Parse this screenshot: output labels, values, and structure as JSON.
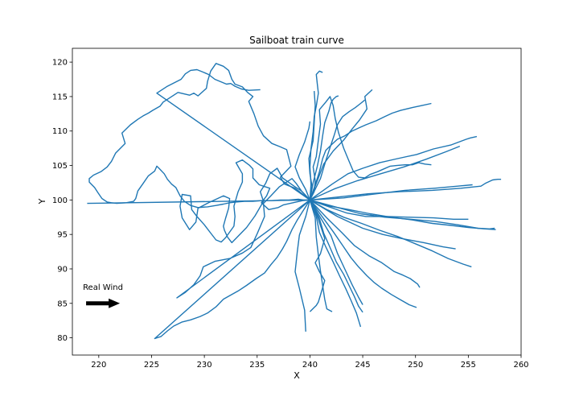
{
  "chart_data": {
    "type": "line",
    "title": "Sailboat train curve",
    "xlabel": "X",
    "ylabel": "Y",
    "xlim": [
      217.5,
      260
    ],
    "ylim": [
      77.5,
      122
    ],
    "x_ticks": [
      220,
      225,
      230,
      235,
      240,
      245,
      250,
      255,
      260
    ],
    "y_ticks": [
      80,
      85,
      90,
      95,
      100,
      105,
      110,
      115,
      120
    ],
    "grid": false,
    "series_color": "#1f77b4",
    "annotation": {
      "text": "Real Wind",
      "arrow_from": [
        218.8,
        85.0
      ],
      "arrow_to": [
        222.0,
        85.0
      ],
      "arrow_color": "#000000"
    },
    "series": [
      {
        "x": [
          240,
          239.2,
          238.5,
          237.4,
          236.9,
          236.2,
          235.8,
          235.3,
          235.6,
          234.8,
          234.0,
          232.6,
          232.2,
          231.9,
          231.8,
          232.0,
          232.3,
          232.4,
          231.8,
          230.4,
          229.4,
          229.2,
          228.6,
          227.9,
          227.7,
          227.9,
          228.7,
          228.8,
          229.3,
          230.0,
          230.6,
          231.1,
          231.6,
          232.0,
          232.8,
          232.9,
          232.8,
          233.2,
          233.6,
          233.6,
          233.3,
          233.0,
          233.6,
          234.3,
          234.6,
          234.6,
          235.2,
          236.2,
          235.9,
          235.4,
          236.1,
          237.0,
          237.5,
          238.4,
          239.3,
          240.0
        ],
        "y": [
          100,
          101.3,
          102.0,
          103.2,
          104.6,
          103.8,
          102.4,
          101.2,
          99.8,
          97.7,
          96.0,
          93.8,
          94.6,
          95.6,
          96.2,
          97.3,
          98.8,
          100.2,
          100.6,
          99.6,
          98.8,
          96.8,
          95.7,
          97.4,
          99.1,
          100.8,
          100.6,
          98.6,
          97.6,
          96.4,
          95.2,
          94.2,
          93.9,
          94.5,
          96.2,
          97.6,
          99.1,
          101.2,
          102.6,
          103.8,
          104.6,
          105.4,
          105.8,
          105.0,
          104.5,
          103.2,
          102.2,
          101.7,
          100.6,
          99.6,
          98.6,
          98.9,
          99.3,
          99.6,
          99.9,
          100
        ]
      },
      {
        "x": [
          240,
          238.6,
          237.6,
          237.2,
          238.2,
          237.8,
          237.2,
          236.4,
          235.6,
          235.1,
          234.7,
          234.2,
          234.6,
          234.1,
          233.6,
          232.9,
          232.6,
          232.3,
          231.8,
          231.1,
          230.6,
          230.3,
          230.2,
          229.4,
          229.0,
          228.6,
          227.5,
          226.1,
          225.8,
          225.1,
          224.7,
          224.2,
          223.7,
          223.0,
          222.2,
          222.5,
          221.6,
          221.2,
          220.8,
          220.2,
          219.5,
          219.1,
          219.1,
          219.6,
          219.9,
          220.3,
          220.8,
          221.2,
          221.7,
          222.6,
          223.3,
          223.5,
          223.7,
          224.2,
          224.7,
          225.3,
          225.5,
          225.7,
          226.2,
          226.5,
          226.9,
          227.3,
          227.7,
          228.1,
          228.7,
          229.4,
          230.3,
          231.1,
          231.8,
          232.4,
          233.0,
          233.8,
          234.6,
          235.4,
          236.4,
          237.2,
          238.0,
          238.9,
          239.4,
          239.8,
          240
        ],
        "y": [
          100,
          101.7,
          102.3,
          103.3,
          104.9,
          107.3,
          107.7,
          108.2,
          109.3,
          110.7,
          112.5,
          114.3,
          115.0,
          115.6,
          116.4,
          116.8,
          117.5,
          118.8,
          119.4,
          119.8,
          118.7,
          117.2,
          116.2,
          115.1,
          115.5,
          115.2,
          115.6,
          114.2,
          113.6,
          113.0,
          112.6,
          112.2,
          111.7,
          110.9,
          109.7,
          108.2,
          106.8,
          105.6,
          104.8,
          104.1,
          103.6,
          103.1,
          102.6,
          101.8,
          101.1,
          100.2,
          99.7,
          99.6,
          99.5,
          99.6,
          99.8,
          100.2,
          101.3,
          102.4,
          103.5,
          104.2,
          104.9,
          104.6,
          103.8,
          103.0,
          102.3,
          101.8,
          100.6,
          99.8,
          99.2,
          98.9,
          99.0,
          99.2,
          99.4,
          99.6,
          99.7,
          99.8,
          99.8,
          99.9,
          99.9,
          100.0,
          100.0,
          100.1,
          100.0,
          100.0,
          100
        ]
      },
      {
        "x": [
          240,
          225.5,
          226.5,
          227.8,
          228.2,
          228.7,
          229.3,
          229.8,
          230.4,
          231.0,
          232.1,
          232.5,
          232.9,
          233.5,
          234.2,
          235.3
        ],
        "y": [
          100,
          115.5,
          116.5,
          117.5,
          118.3,
          118.8,
          118.9,
          118.6,
          118.2,
          117.5,
          116.8,
          116.9,
          116.5,
          116.1,
          115.9,
          116.0
        ]
      },
      {
        "x": [
          240,
          218.9
        ],
        "y": [
          100,
          99.5
        ]
      },
      {
        "x": [
          240,
          227.4,
          228.2,
          229.0,
          229.6,
          229.9,
          231.0,
          232.4,
          233.6,
          234.4,
          235.0,
          235.7,
          235.6,
          236.3,
          237.1,
          237.8,
          238.3,
          238.7,
          239.2,
          240
        ],
        "y": [
          100,
          85.8,
          86.6,
          87.7,
          89.0,
          90.3,
          91.1,
          91.5,
          92.3,
          93.1,
          95.1,
          97.6,
          99.5,
          100.6,
          101.9,
          102.6,
          103.1,
          102.4,
          101.3,
          100
        ]
      },
      {
        "x": [
          240,
          225.3,
          225.9,
          226.5,
          227.1,
          227.9,
          228.7,
          229.6,
          230.3,
          231.1,
          231.8,
          232.5,
          233.2,
          234.0,
          234.9,
          235.7,
          236.3,
          236.9,
          237.4,
          237.8,
          238.3,
          238.8,
          239.3,
          240
        ],
        "y": [
          100,
          79.9,
          80.2,
          81.0,
          81.7,
          82.3,
          82.6,
          83.1,
          83.6,
          84.5,
          85.6,
          86.2,
          86.8,
          87.6,
          88.6,
          89.4,
          90.6,
          91.7,
          92.9,
          94.0,
          95.7,
          97.1,
          98.3,
          100
        ]
      },
      {
        "x": [
          240,
          240.4,
          240.5,
          240.3,
          240.6,
          240.8,
          241.0,
          240.9,
          241.5,
          241.9,
          242.2,
          242.4,
          242.7,
          243.2,
          243.6,
          244.1,
          244.6,
          245.2,
          245.7,
          246.4,
          247.0,
          247.6,
          248.2,
          249.0,
          249.7,
          250.3,
          250.9,
          251.5
        ],
        "y": [
          100,
          101.2,
          102.8,
          104.8,
          106.3,
          108.7,
          111.0,
          113.1,
          114.2,
          115.0,
          113.7,
          111.8,
          109.8,
          107.5,
          106.0,
          104.2,
          103.3,
          103.2,
          103.7,
          104.1,
          104.5,
          104.9,
          105.0,
          105.1,
          105.1,
          105.4,
          105.2,
          105.1
        ]
      },
      {
        "x": [
          240,
          240.5,
          240.9,
          241.2,
          241.5,
          242.1,
          242.6,
          243.3,
          244.0,
          244.7,
          245.3,
          246.3,
          247.1,
          247.8,
          248.6,
          249.7,
          250.6,
          251.5
        ],
        "y": [
          100,
          102.2,
          104.1,
          106.0,
          107.2,
          108.1,
          108.8,
          109.3,
          110.0,
          110.5,
          110.9,
          111.5,
          112.1,
          112.6,
          113.0,
          113.4,
          113.7,
          114.0
        ]
      },
      {
        "x": [
          240,
          241.3,
          242.2,
          243.2,
          244.0,
          244.7,
          245.4,
          245.2,
          245.9
        ],
        "y": [
          100,
          105.2,
          107.1,
          108.7,
          110.3,
          111.6,
          113.2,
          115.0,
          116.0
        ]
      },
      {
        "x": [
          240,
          241.0,
          241.5,
          241.9,
          242.3,
          242.6,
          243.1,
          243.7,
          244.3,
          244.8,
          245.2
        ],
        "y": [
          100,
          103.1,
          105.7,
          107.6,
          109.4,
          110.9,
          112.1,
          112.8,
          113.4,
          114.0,
          114.5
        ]
      },
      {
        "x": [
          240,
          242.1,
          243.6,
          245.0,
          246.6,
          248.3,
          250.1,
          251.7,
          253.4,
          254.8,
          255.2,
          255.8
        ],
        "y": [
          100,
          102.3,
          103.8,
          104.6,
          105.4,
          106.0,
          106.6,
          107.4,
          108.0,
          108.8,
          109.0,
          109.2
        ]
      },
      {
        "x": [
          240,
          242.3,
          244.5,
          246.7,
          248.9,
          251.0,
          252.9,
          254.2
        ],
        "y": [
          100,
          101.6,
          102.8,
          103.8,
          104.8,
          105.9,
          107.0,
          107.8
        ]
      },
      {
        "x": [
          240,
          242.5,
          245.5,
          248.5,
          251.6,
          254.3,
          256.2,
          256.6,
          257.3,
          257.8,
          258.1
        ],
        "y": [
          100,
          100.4,
          100.9,
          101.2,
          101.4,
          101.7,
          102.0,
          102.4,
          102.9,
          103.0,
          103.0
        ]
      },
      {
        "x": [
          240,
          243.2,
          246.3,
          249.0,
          251.8,
          254.0,
          255.4
        ],
        "y": [
          100,
          100.3,
          100.9,
          101.4,
          101.7,
          102.0,
          102.2
        ]
      },
      {
        "x": [
          240,
          241.9,
          243.7,
          245.7,
          247.7,
          249.7,
          251.6,
          253.4,
          255.0,
          256.6,
          257.6
        ],
        "y": [
          100,
          99.1,
          98.6,
          98.0,
          97.5,
          97.1,
          96.6,
          96.3,
          96.0,
          95.8,
          95.7
        ]
      },
      {
        "x": [
          240,
          242.4,
          244.8,
          247.1,
          249.5,
          251.8,
          254.0,
          255.9,
          257.0,
          257.5
        ],
        "y": [
          100,
          99.0,
          98.0,
          97.5,
          97.2,
          96.9,
          96.4,
          95.9,
          95.8,
          95.9
        ]
      },
      {
        "x": [
          240,
          241.8,
          243.5,
          245.3,
          247.4,
          249.5,
          251.7,
          253.6,
          255.0
        ],
        "y": [
          100,
          99.0,
          98.1,
          97.6,
          97.6,
          97.5,
          97.4,
          97.2,
          97.2
        ]
      },
      {
        "x": [
          240,
          241.6,
          243.2,
          244.9,
          246.6,
          248.3,
          249.9,
          251.6,
          253.1,
          254.5,
          255.3
        ],
        "y": [
          100,
          98.6,
          97.5,
          96.6,
          95.6,
          94.7,
          93.7,
          92.6,
          91.5,
          90.7,
          90.3
        ]
      },
      {
        "x": [
          240,
          242.6,
          245.0,
          246.9,
          248.7,
          250.8,
          252.6,
          253.8
        ],
        "y": [
          100,
          97.6,
          95.9,
          95.0,
          94.4,
          93.8,
          93.2,
          92.9
        ]
      },
      {
        "x": [
          240,
          241.6,
          243.0,
          244.2,
          245.6,
          246.8,
          248.0,
          248.8,
          249.5,
          250.2,
          250.4
        ],
        "y": [
          100,
          97.4,
          95.3,
          93.4,
          91.9,
          90.9,
          89.6,
          89.1,
          88.6,
          87.8,
          87.3
        ]
      },
      {
        "x": [
          240,
          241.2,
          242.2,
          243.1,
          243.9,
          244.6,
          245.4,
          246.1,
          246.8,
          247.7,
          248.6,
          249.4,
          250.1
        ],
        "y": [
          100,
          97.5,
          95.4,
          93.4,
          91.6,
          90.3,
          89.0,
          88.0,
          87.2,
          86.3,
          85.5,
          84.8,
          84.4
        ]
      },
      {
        "x": [
          240,
          241.2,
          242.0,
          242.6,
          243.3,
          244.0,
          244.6,
          245.0
        ],
        "y": [
          100,
          96.9,
          94.8,
          92.3,
          90.0,
          87.7,
          85.9,
          84.8
        ]
      },
      {
        "x": [
          240,
          240.9,
          241.3,
          241.9,
          242.5,
          243.2,
          243.7,
          244.2,
          244.6,
          245.0
        ],
        "y": [
          100,
          97.3,
          95.2,
          93.1,
          91.0,
          89.2,
          87.6,
          86.0,
          84.6,
          83.7
        ]
      },
      {
        "x": [
          240,
          240.6,
          240.9,
          241.5,
          242.2,
          242.8,
          243.4,
          243.9,
          244.4,
          244.8
        ],
        "y": [
          100,
          97.6,
          95.3,
          93.2,
          91.0,
          89.0,
          87.1,
          85.4,
          83.6,
          81.6
        ]
      },
      {
        "x": [
          240,
          240.5,
          240.6,
          240.8,
          241.0,
          241.2,
          241.4,
          241.6,
          242.1
        ],
        "y": [
          100,
          97.4,
          94.6,
          92.0,
          89.7,
          87.6,
          85.6,
          84.2,
          83.8
        ]
      },
      {
        "x": [
          240,
          239.6,
          239.0,
          238.8,
          238.6,
          239.0,
          239.5,
          239.6
        ],
        "y": [
          100,
          97.6,
          94.9,
          92.5,
          89.6,
          87.2,
          84.0,
          80.9
        ]
      },
      {
        "x": [
          240,
          240.7,
          241.1,
          241.4,
          241.0,
          240.5,
          240.9,
          241.4,
          241.0,
          240.8,
          240.6,
          240.4,
          240.0
        ],
        "y": [
          100,
          97.6,
          95.8,
          94.4,
          92.2,
          90.9,
          89.6,
          88.3,
          86.2,
          85.2,
          84.7,
          84.4,
          83.8
        ]
      },
      {
        "x": [
          240,
          240.3,
          240.7,
          241.0,
          241.2,
          241.4,
          241.8,
          242.0,
          242.2,
          242.5,
          242.7
        ],
        "y": [
          100,
          102.5,
          104.9,
          107.1,
          109.3,
          111.2,
          112.9,
          114.1,
          114.6,
          115.0,
          115.1
        ]
      },
      {
        "x": [
          240,
          240.1,
          240.0,
          240.1,
          240.3,
          240.4,
          240.6,
          240.8,
          240.7,
          240.6,
          240.9,
          241.2
        ],
        "y": [
          100,
          102.2,
          104.8,
          107.4,
          109.9,
          112.1,
          113.6,
          115.5,
          116.8,
          118.2,
          118.7,
          118.5
        ]
      },
      {
        "x": [
          240,
          240.2,
          240.0,
          239.9,
          240.3,
          240.4,
          240.5,
          240.4
        ],
        "y": [
          100,
          102.0,
          103.8,
          106.0,
          108.6,
          111.1,
          113.7,
          115.8
        ]
      },
      {
        "x": [
          240,
          239.6,
          239.0,
          238.6,
          239.0,
          239.5,
          239.9,
          240.0
        ],
        "y": [
          100,
          101.5,
          103.2,
          104.8,
          106.6,
          108.4,
          110.4,
          111.4
        ]
      }
    ]
  }
}
